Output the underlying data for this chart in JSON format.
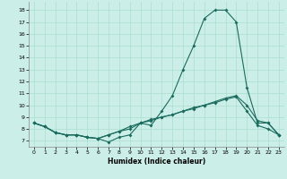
{
  "xlabel": "Humidex (Indice chaleur)",
  "bg_color": "#cceee8",
  "line_color": "#1a6b5e",
  "grid_color": "#aaddcc",
  "xlim": [
    -0.5,
    23.5
  ],
  "ylim": [
    6.5,
    18.7
  ],
  "yticks": [
    7,
    8,
    9,
    10,
    11,
    12,
    13,
    14,
    15,
    16,
    17,
    18
  ],
  "xticks": [
    0,
    1,
    2,
    3,
    4,
    5,
    6,
    7,
    8,
    9,
    10,
    11,
    12,
    13,
    14,
    15,
    16,
    17,
    18,
    19,
    20,
    21,
    22,
    23
  ],
  "line1_x": [
    0,
    1,
    2,
    3,
    4,
    5,
    6,
    7,
    8,
    9,
    10,
    11,
    12,
    13,
    14,
    15,
    16,
    17,
    18,
    19,
    20,
    21,
    22,
    23
  ],
  "line1_y": [
    8.5,
    8.2,
    7.7,
    7.5,
    7.5,
    7.3,
    7.2,
    6.9,
    7.3,
    7.5,
    8.5,
    8.3,
    9.5,
    10.8,
    13.0,
    15.0,
    17.3,
    18.0,
    18.0,
    17.0,
    11.5,
    8.5,
    8.5,
    7.5
  ],
  "line2_x": [
    0,
    1,
    2,
    3,
    4,
    5,
    6,
    7,
    8,
    9,
    10,
    11,
    12,
    13,
    14,
    15,
    16,
    17,
    18,
    19,
    20,
    21,
    22,
    23
  ],
  "line2_y": [
    8.5,
    8.2,
    7.7,
    7.5,
    7.5,
    7.3,
    7.2,
    7.5,
    7.8,
    8.2,
    8.5,
    8.8,
    9.0,
    9.2,
    9.5,
    9.8,
    10.0,
    10.3,
    10.6,
    10.8,
    10.0,
    8.7,
    8.5,
    7.5
  ],
  "line3_x": [
    0,
    1,
    2,
    3,
    4,
    5,
    6,
    7,
    8,
    9,
    10,
    11,
    12,
    13,
    14,
    15,
    16,
    17,
    18,
    19,
    20,
    21,
    22,
    23
  ],
  "line3_y": [
    8.5,
    8.2,
    7.7,
    7.5,
    7.5,
    7.3,
    7.2,
    7.5,
    7.8,
    8.0,
    8.5,
    8.7,
    9.0,
    9.2,
    9.5,
    9.7,
    10.0,
    10.2,
    10.5,
    10.7,
    9.5,
    8.3,
    8.0,
    7.5
  ],
  "marker_size": 2.0,
  "line_width": 0.8,
  "tick_fontsize": 4.5,
  "xlabel_fontsize": 5.5
}
